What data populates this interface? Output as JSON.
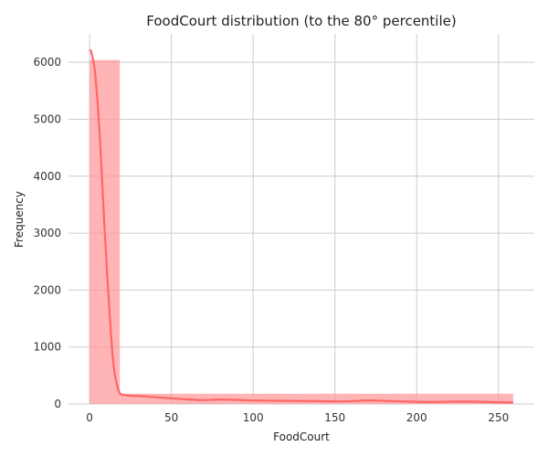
{
  "chart_data": {
    "type": "bar",
    "title": "FoodCourt distribution (to the 80° percentile)",
    "xlabel": "FoodCourt",
    "ylabel": "Frequency",
    "xlim": [
      -12.9,
      271.9
    ],
    "ylim": [
      0,
      6500
    ],
    "xticks": [
      0,
      50,
      100,
      150,
      200,
      250
    ],
    "yticks": [
      0,
      1000,
      2000,
      3000,
      4000,
      5000,
      6000
    ],
    "grid": true,
    "colors": {
      "bar": "#ff9999",
      "bar_alpha": 0.72,
      "line": "#ff6666",
      "grid": "#cccccc"
    },
    "histogram": {
      "bins": [
        {
          "x0": 0,
          "x1": 18.5,
          "count": 6040
        },
        {
          "x0": 18.5,
          "x1": 259,
          "count": 180
        }
      ]
    },
    "kde": {
      "x": [
        0,
        1,
        3,
        5,
        7,
        9,
        11,
        13,
        15,
        18,
        21,
        25,
        30,
        40,
        50,
        60,
        70,
        80,
        90,
        100,
        110,
        120,
        130,
        140,
        150,
        160,
        170,
        180,
        190,
        200,
        210,
        220,
        230,
        240,
        250,
        259
      ],
      "y": [
        6220,
        6180,
        5900,
        5250,
        4300,
        3150,
        2150,
        1250,
        600,
        220,
        160,
        145,
        140,
        120,
        100,
        80,
        68,
        78,
        72,
        62,
        58,
        55,
        52,
        50,
        45,
        48,
        62,
        55,
        45,
        38,
        35,
        40,
        42,
        38,
        30,
        25
      ]
    }
  }
}
